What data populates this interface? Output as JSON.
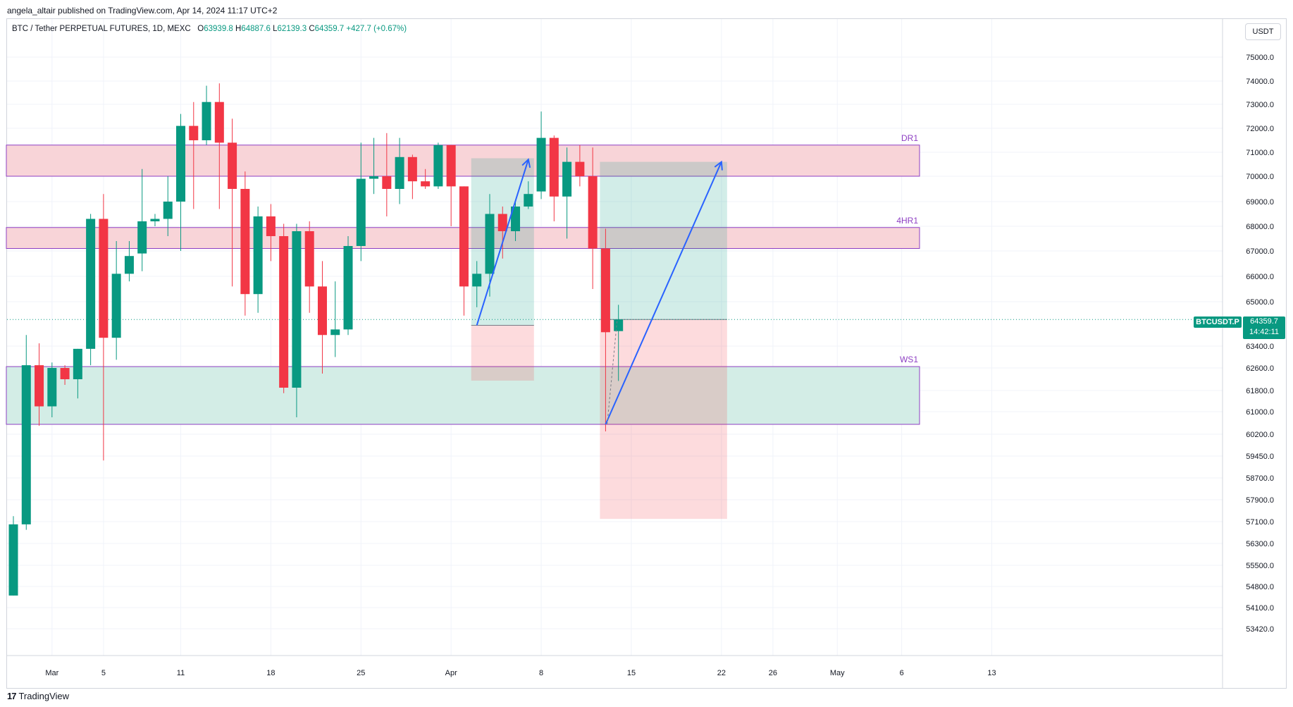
{
  "header": {
    "published_text": "angela_altair published on TradingView.com, Apr 14, 2024 11:17 UTC+2"
  },
  "legend": {
    "title": "BTC / Tether PERPETUAL FUTURES, 1D, MEXC",
    "open_label": "O",
    "open": "63939.8",
    "high_label": "H",
    "high": "64887.6",
    "low_label": "L",
    "low": "62139.3",
    "close_label": "C",
    "close": "64359.7",
    "change": "+427.7 (+0.67%)"
  },
  "currency_button": "USDT",
  "price_label": {
    "symbol": "BTCUSDT.P",
    "price": "64359.7",
    "countdown": "14:42:11"
  },
  "footer": {
    "logo_mark": "17",
    "brand": "TradingView"
  },
  "colors": {
    "up": "#089981",
    "down": "#f23645",
    "zone_red": "#f8d4d8",
    "zone_green": "#d3ede6",
    "zone_border": "#8e3fc3",
    "arrow": "#2962ff"
  },
  "chart_data": {
    "type": "candlestick",
    "title": "BTC / Tether PERPETUAL FUTURES, 1D, MEXC",
    "x_tick_labels": [
      {
        "label": "Mar",
        "date": "2024-03-01"
      },
      {
        "label": "5",
        "date": "2024-03-05"
      },
      {
        "label": "11",
        "date": "2024-03-11"
      },
      {
        "label": "18",
        "date": "2024-03-18"
      },
      {
        "label": "25",
        "date": "2024-03-25"
      },
      {
        "label": "Apr",
        "date": "2024-04-01"
      },
      {
        "label": "8",
        "date": "2024-04-08"
      },
      {
        "label": "15",
        "date": "2024-04-15"
      },
      {
        "label": "22",
        "date": "2024-04-22"
      },
      {
        "label": "26",
        "date": "2024-04-26"
      },
      {
        "label": "May",
        "date": "2024-05-01"
      },
      {
        "label": "6",
        "date": "2024-05-06"
      },
      {
        "label": "13",
        "date": "2024-05-13"
      }
    ],
    "y_tick_labels": [
      "75000.0",
      "74000.0",
      "73000.0",
      "72000.0",
      "71000.0",
      "70000.0",
      "69000.0",
      "68000.0",
      "67000.0",
      "66000.0",
      "65000.0",
      "63400.0",
      "62600.0",
      "61800.0",
      "61000.0",
      "60200.0",
      "59450.0",
      "58700.0",
      "57900.0",
      "57100.0",
      "56300.0",
      "55500.0",
      "54800.0",
      "54100.0",
      "53420.0"
    ],
    "candles": [
      {
        "date": "2024-02-27",
        "o": 54500,
        "h": 57300,
        "l": 54500,
        "c": 57000
      },
      {
        "date": "2024-02-28",
        "o": 57000,
        "h": 63800,
        "l": 56800,
        "c": 62700
      },
      {
        "date": "2024-02-29",
        "o": 62700,
        "h": 63500,
        "l": 60500,
        "c": 61200
      },
      {
        "date": "2024-03-01",
        "o": 61200,
        "h": 62800,
        "l": 60800,
        "c": 62600
      },
      {
        "date": "2024-03-02",
        "o": 62600,
        "h": 62700,
        "l": 62000,
        "c": 62200
      },
      {
        "date": "2024-03-03",
        "o": 62200,
        "h": 63300,
        "l": 61500,
        "c": 63300
      },
      {
        "date": "2024-03-04",
        "o": 63300,
        "h": 68500,
        "l": 62700,
        "c": 68300
      },
      {
        "date": "2024-03-05",
        "o": 68300,
        "h": 69300,
        "l": 59300,
        "c": 63700
      },
      {
        "date": "2024-03-06",
        "o": 63700,
        "h": 67400,
        "l": 62900,
        "c": 66100
      },
      {
        "date": "2024-03-07",
        "o": 66100,
        "h": 67400,
        "l": 65800,
        "c": 66800
      },
      {
        "date": "2024-03-08",
        "o": 66900,
        "h": 70300,
        "l": 66200,
        "c": 68200
      },
      {
        "date": "2024-03-09",
        "o": 68200,
        "h": 68500,
        "l": 68000,
        "c": 68300
      },
      {
        "date": "2024-03-10",
        "o": 68300,
        "h": 70000,
        "l": 67600,
        "c": 69000
      },
      {
        "date": "2024-03-11",
        "o": 69000,
        "h": 72600,
        "l": 67000,
        "c": 72100
      },
      {
        "date": "2024-03-12",
        "o": 72100,
        "h": 73100,
        "l": 68700,
        "c": 71500
      },
      {
        "date": "2024-03-13",
        "o": 71500,
        "h": 73800,
        "l": 71300,
        "c": 73100
      },
      {
        "date": "2024-03-14",
        "o": 73100,
        "h": 73900,
        "l": 68700,
        "c": 71400
      },
      {
        "date": "2024-03-15",
        "o": 71400,
        "h": 72400,
        "l": 65600,
        "c": 69500
      },
      {
        "date": "2024-03-16",
        "o": 69500,
        "h": 70200,
        "l": 64500,
        "c": 65300
      },
      {
        "date": "2024-03-17",
        "o": 65300,
        "h": 68800,
        "l": 64600,
        "c": 68400
      },
      {
        "date": "2024-03-18",
        "o": 68400,
        "h": 68900,
        "l": 66600,
        "c": 67600
      },
      {
        "date": "2024-03-19",
        "o": 67600,
        "h": 68100,
        "l": 61700,
        "c": 61900
      },
      {
        "date": "2024-03-20",
        "o": 61900,
        "h": 68100,
        "l": 60800,
        "c": 67800
      },
      {
        "date": "2024-03-21",
        "o": 67800,
        "h": 68200,
        "l": 64600,
        "c": 65600
      },
      {
        "date": "2024-03-22",
        "o": 65600,
        "h": 66600,
        "l": 62400,
        "c": 63800
      },
      {
        "date": "2024-03-23",
        "o": 63800,
        "h": 65800,
        "l": 63000,
        "c": 64000
      },
      {
        "date": "2024-03-24",
        "o": 64000,
        "h": 67600,
        "l": 63800,
        "c": 67200
      },
      {
        "date": "2024-03-25",
        "o": 67200,
        "h": 71400,
        "l": 66600,
        "c": 69900
      },
      {
        "date": "2024-03-26",
        "o": 69900,
        "h": 71600,
        "l": 69300,
        "c": 70000
      },
      {
        "date": "2024-03-27",
        "o": 70000,
        "h": 71800,
        "l": 68400,
        "c": 69500
      },
      {
        "date": "2024-03-28",
        "o": 69500,
        "h": 71600,
        "l": 68900,
        "c": 70800
      },
      {
        "date": "2024-03-29",
        "o": 70800,
        "h": 70900,
        "l": 69100,
        "c": 69800
      },
      {
        "date": "2024-03-30",
        "o": 69800,
        "h": 70300,
        "l": 69500,
        "c": 69600
      },
      {
        "date": "2024-03-31",
        "o": 69600,
        "h": 71400,
        "l": 69500,
        "c": 71300
      },
      {
        "date": "2024-04-01",
        "o": 71300,
        "h": 71300,
        "l": 68000,
        "c": 69600
      },
      {
        "date": "2024-04-02",
        "o": 69600,
        "h": 69600,
        "l": 64500,
        "c": 65600
      },
      {
        "date": "2024-04-03",
        "o": 65600,
        "h": 66600,
        "l": 64800,
        "c": 66100
      },
      {
        "date": "2024-04-04",
        "o": 66100,
        "h": 69300,
        "l": 65200,
        "c": 68500
      },
      {
        "date": "2024-04-05",
        "o": 68500,
        "h": 68800,
        "l": 66700,
        "c": 67800
      },
      {
        "date": "2024-04-06",
        "o": 67800,
        "h": 69000,
        "l": 67400,
        "c": 68800
      },
      {
        "date": "2024-04-07",
        "o": 68800,
        "h": 69800,
        "l": 68700,
        "c": 69300
      },
      {
        "date": "2024-04-08",
        "o": 69400,
        "h": 72700,
        "l": 69100,
        "c": 71600
      },
      {
        "date": "2024-04-09",
        "o": 71600,
        "h": 71700,
        "l": 68200,
        "c": 69200
      },
      {
        "date": "2024-04-10",
        "o": 69200,
        "h": 71200,
        "l": 67500,
        "c": 70600
      },
      {
        "date": "2024-04-11",
        "o": 70600,
        "h": 71300,
        "l": 69600,
        "c": 70000
      },
      {
        "date": "2024-04-12",
        "o": 70000,
        "h": 71200,
        "l": 65500,
        "c": 67100
      },
      {
        "date": "2024-04-13",
        "o": 67100,
        "h": 67900,
        "l": 60300,
        "c": 63900
      },
      {
        "date": "2024-04-14",
        "o": 63939.8,
        "h": 64887.6,
        "l": 62139.3,
        "c": 64359.7
      }
    ],
    "zones": [
      {
        "label": "DR1",
        "from": "2024-02-27",
        "to": "2024-04-27",
        "low": 70000,
        "high": 71300,
        "fill": "red"
      },
      {
        "label": "4HR1",
        "from": "2024-02-27",
        "to": "2024-04-27",
        "low": 67100,
        "high": 67950,
        "fill": "red"
      },
      {
        "label": "WS1",
        "from": "2024-02-27",
        "to": "2024-04-27",
        "low": 60550,
        "high": 62650,
        "fill": "green"
      }
    ],
    "positions": [
      {
        "from": "2024-04-03",
        "to": "2024-04-07",
        "entry": 64150,
        "target": 70750,
        "stop": 62150
      },
      {
        "from": "2024-04-13",
        "to": "2024-04-22",
        "entry": 64359.7,
        "target": 70600,
        "stop": 57200
      }
    ],
    "arrows": [
      {
        "from_date": "2024-04-03",
        "from_price": 64150,
        "to_date": "2024-04-07",
        "to_price": 70700
      },
      {
        "from_date": "2024-04-13",
        "from_price": 60550,
        "to_date": "2024-04-22",
        "to_price": 70600
      }
    ],
    "current_price": 64359.7
  }
}
